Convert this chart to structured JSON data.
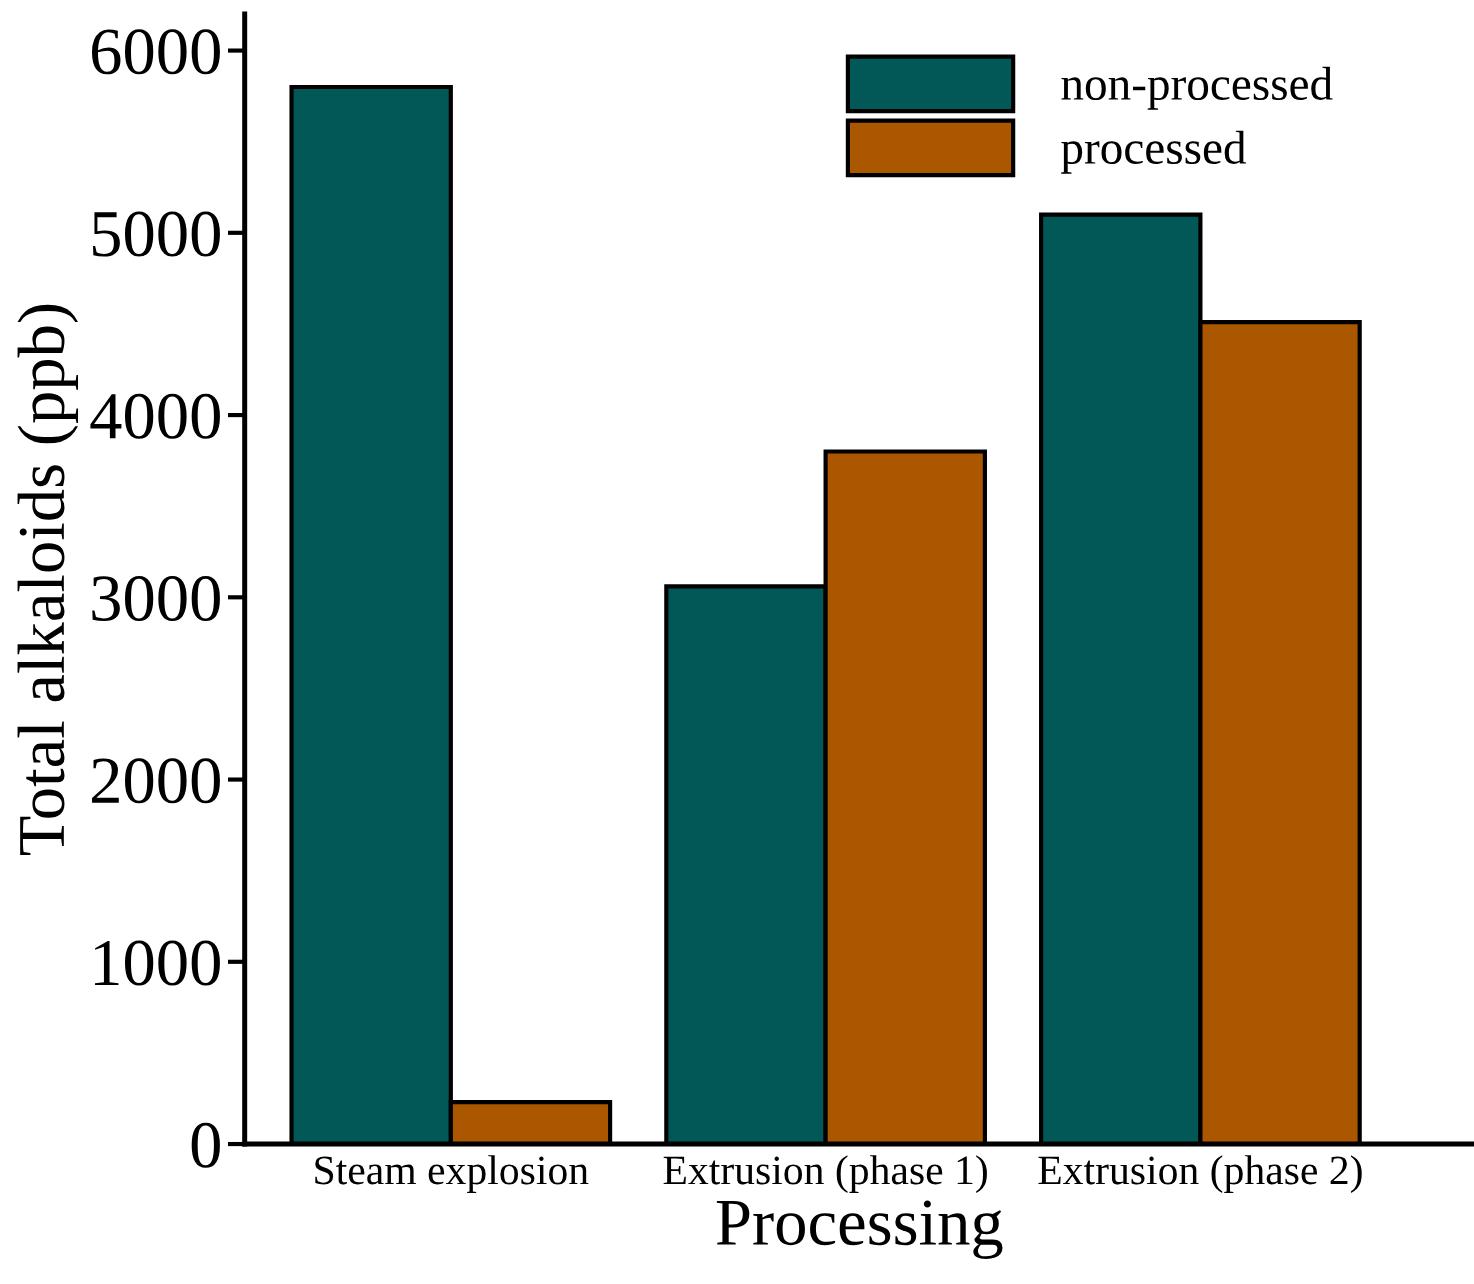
{
  "chart_data": {
    "type": "bar",
    "xlabel": "Processing",
    "ylabel": "Total alkaloids (ppb)",
    "categories": [
      "Steam explosion",
      "Extrusion (phase 1)",
      "Extrusion (phase 2)"
    ],
    "series": [
      {
        "name": "non-processed",
        "color": "#025856",
        "values": [
          5800,
          3060,
          5100
        ]
      },
      {
        "name": "processed",
        "color": "#ab5700",
        "values": [
          230,
          3800,
          4510
        ]
      }
    ],
    "ylim": [
      0,
      6200
    ],
    "yticks": [
      0,
      1000,
      2000,
      3000,
      4000,
      5000,
      6000
    ],
    "grid": false,
    "legend": "top right"
  }
}
